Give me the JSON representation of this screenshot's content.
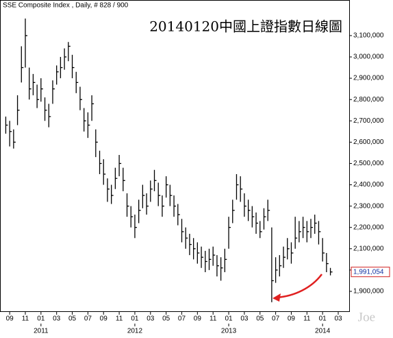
{
  "chart_data": {
    "type": "ohlc",
    "header": "SSE Composite Index , Daily, # 828 / 900",
    "title": "20140120中國上證指數日線圖",
    "watermark": "Joe",
    "x": [
      -0.5,
      0,
      0.5,
      1,
      1.5,
      2,
      2.5,
      3,
      3.5,
      4,
      4.5,
      5,
      5.5,
      6,
      6.5,
      7,
      7.5,
      8,
      8.5,
      9,
      9.5,
      10,
      10.5,
      11,
      11.5,
      12,
      12.5,
      13,
      13.5,
      14,
      14.5,
      15,
      15.5,
      16,
      16.5,
      17,
      17.5,
      18,
      18.5,
      19,
      19.5,
      20,
      20.5,
      21,
      21.5,
      22,
      22.5,
      23,
      23.5,
      24,
      24.5,
      25,
      25.5,
      26,
      26.5,
      27,
      27.5,
      28,
      28.5,
      29,
      29.5,
      30,
      30.5,
      31,
      31.5,
      32,
      32.5,
      33,
      33.5,
      34,
      34.5,
      35,
      35.5,
      36,
      36.5,
      37,
      37.5,
      38,
      38.5,
      39,
      39.5,
      40,
      40.5,
      41
    ],
    "high": [
      2720000,
      2700000,
      2660000,
      2820000,
      3050000,
      3180000,
      2950000,
      2920000,
      2870000,
      2900000,
      2810000,
      2780000,
      2890000,
      2960000,
      3000000,
      3040000,
      3070000,
      3010000,
      2930000,
      2860000,
      2760000,
      2740000,
      2820000,
      2660000,
      2560000,
      2520000,
      2430000,
      2400000,
      2480000,
      2540000,
      2480000,
      2360000,
      2300000,
      2260000,
      2330000,
      2400000,
      2360000,
      2420000,
      2470000,
      2410000,
      2350000,
      2440000,
      2400000,
      2350000,
      2310000,
      2240000,
      2200000,
      2170000,
      2150000,
      2130000,
      2110000,
      2090000,
      2100000,
      2110000,
      2070000,
      2060000,
      2100000,
      2250000,
      2330000,
      2450000,
      2440000,
      2360000,
      2330000,
      2300000,
      2270000,
      2230000,
      2290000,
      2330000,
      2200000,
      2060000,
      2070000,
      2110000,
      2150000,
      2130000,
      2250000,
      2230000,
      2250000,
      2230000,
      2240000,
      2260000,
      2230000,
      2150000,
      2080000,
      2010000
    ],
    "low": [
      2640000,
      2580000,
      2570000,
      2680000,
      2880000,
      2950000,
      2800000,
      2820000,
      2760000,
      2790000,
      2700000,
      2670000,
      2780000,
      2870000,
      2900000,
      2940000,
      2980000,
      2900000,
      2830000,
      2750000,
      2650000,
      2620000,
      2700000,
      2530000,
      2450000,
      2400000,
      2320000,
      2310000,
      2380000,
      2440000,
      2370000,
      2250000,
      2200000,
      2150000,
      2220000,
      2290000,
      2260000,
      2320000,
      2370000,
      2300000,
      2250000,
      2340000,
      2300000,
      2250000,
      2210000,
      2130000,
      2100000,
      2070000,
      2050000,
      2030000,
      2010000,
      1990000,
      2000000,
      2020000,
      1970000,
      1950000,
      1990000,
      2100000,
      2220000,
      2330000,
      2320000,
      2250000,
      2230000,
      2200000,
      2170000,
      2150000,
      2190000,
      2230000,
      1849000,
      1940000,
      1970000,
      2010000,
      2050000,
      2030000,
      2100000,
      2130000,
      2150000,
      2130000,
      2150000,
      2170000,
      2120000,
      2040000,
      1990000,
      1975000
    ],
    "close": [
      2680000,
      2650000,
      2600000,
      2750000,
      2950000,
      3100000,
      2850000,
      2880000,
      2800000,
      2850000,
      2750000,
      2720000,
      2850000,
      2930000,
      2950000,
      3000000,
      3050000,
      2950000,
      2880000,
      2800000,
      2700000,
      2680000,
      2780000,
      2600000,
      2500000,
      2450000,
      2380000,
      2350000,
      2430000,
      2500000,
      2420000,
      2300000,
      2250000,
      2200000,
      2280000,
      2350000,
      2300000,
      2380000,
      2420000,
      2350000,
      2300000,
      2400000,
      2350000,
      2300000,
      2260000,
      2180000,
      2150000,
      2120000,
      2100000,
      2080000,
      2060000,
      2040000,
      2050000,
      2070000,
      2020000,
      2010000,
      2050000,
      2200000,
      2280000,
      2400000,
      2380000,
      2300000,
      2280000,
      2250000,
      2220000,
      2180000,
      2250000,
      2280000,
      1950000,
      2000000,
      2020000,
      2060000,
      2100000,
      2080000,
      2150000,
      2180000,
      2200000,
      2180000,
      2200000,
      2220000,
      2180000,
      2080000,
      2030000,
      1991054
    ],
    "price_label": {
      "value": 1991054,
      "label": "1,991,054"
    },
    "color": "#000000",
    "xlim": [
      -0.8,
      43.4
    ],
    "xticks": [
      {
        "value": 0,
        "label": "09"
      },
      {
        "value": 2,
        "label": "11"
      },
      {
        "value": 4,
        "label": "01"
      },
      {
        "value": 6,
        "label": "03"
      },
      {
        "value": 8,
        "label": "05"
      },
      {
        "value": 10,
        "label": "07"
      },
      {
        "value": 12,
        "label": "09"
      },
      {
        "value": 14,
        "label": "11"
      },
      {
        "value": 16,
        "label": "01"
      },
      {
        "value": 18,
        "label": "03"
      },
      {
        "value": 20,
        "label": "05"
      },
      {
        "value": 22,
        "label": "07"
      },
      {
        "value": 24,
        "label": "09"
      },
      {
        "value": 26,
        "label": "11"
      },
      {
        "value": 28,
        "label": "01"
      },
      {
        "value": 30,
        "label": "03"
      },
      {
        "value": 32,
        "label": "05"
      },
      {
        "value": 34,
        "label": "07"
      },
      {
        "value": 36,
        "label": "09"
      },
      {
        "value": 38,
        "label": "11"
      },
      {
        "value": 40,
        "label": "01"
      },
      {
        "value": 42,
        "label": "03"
      }
    ],
    "year_ticks": [
      {
        "value": 4,
        "label": "2011"
      },
      {
        "value": 16,
        "label": "2012"
      },
      {
        "value": 28,
        "label": "2013"
      },
      {
        "value": 40,
        "label": "2014"
      }
    ],
    "ylim": [
      1813000,
      3251000
    ],
    "yticks": [
      {
        "value": 1900000,
        "label": "1,900,000"
      },
      {
        "value": 2000000,
        "label": "2,000,000"
      },
      {
        "value": 2100000,
        "label": "2,100,000"
      },
      {
        "value": 2200000,
        "label": "2,200,000"
      },
      {
        "value": 2300000,
        "label": "2,300,000"
      },
      {
        "value": 2400000,
        "label": "2,400,000"
      },
      {
        "value": 2500000,
        "label": "2,500,000"
      },
      {
        "value": 2600000,
        "label": "2,600,000"
      },
      {
        "value": 2700000,
        "label": "2,700,000"
      },
      {
        "value": 2800000,
        "label": "2,800,000"
      },
      {
        "value": 2900000,
        "label": "2,900,000"
      },
      {
        "value": 3000000,
        "label": "3,000,000"
      },
      {
        "value": 3100000,
        "label": "3,100,000"
      }
    ],
    "grid": false
  }
}
